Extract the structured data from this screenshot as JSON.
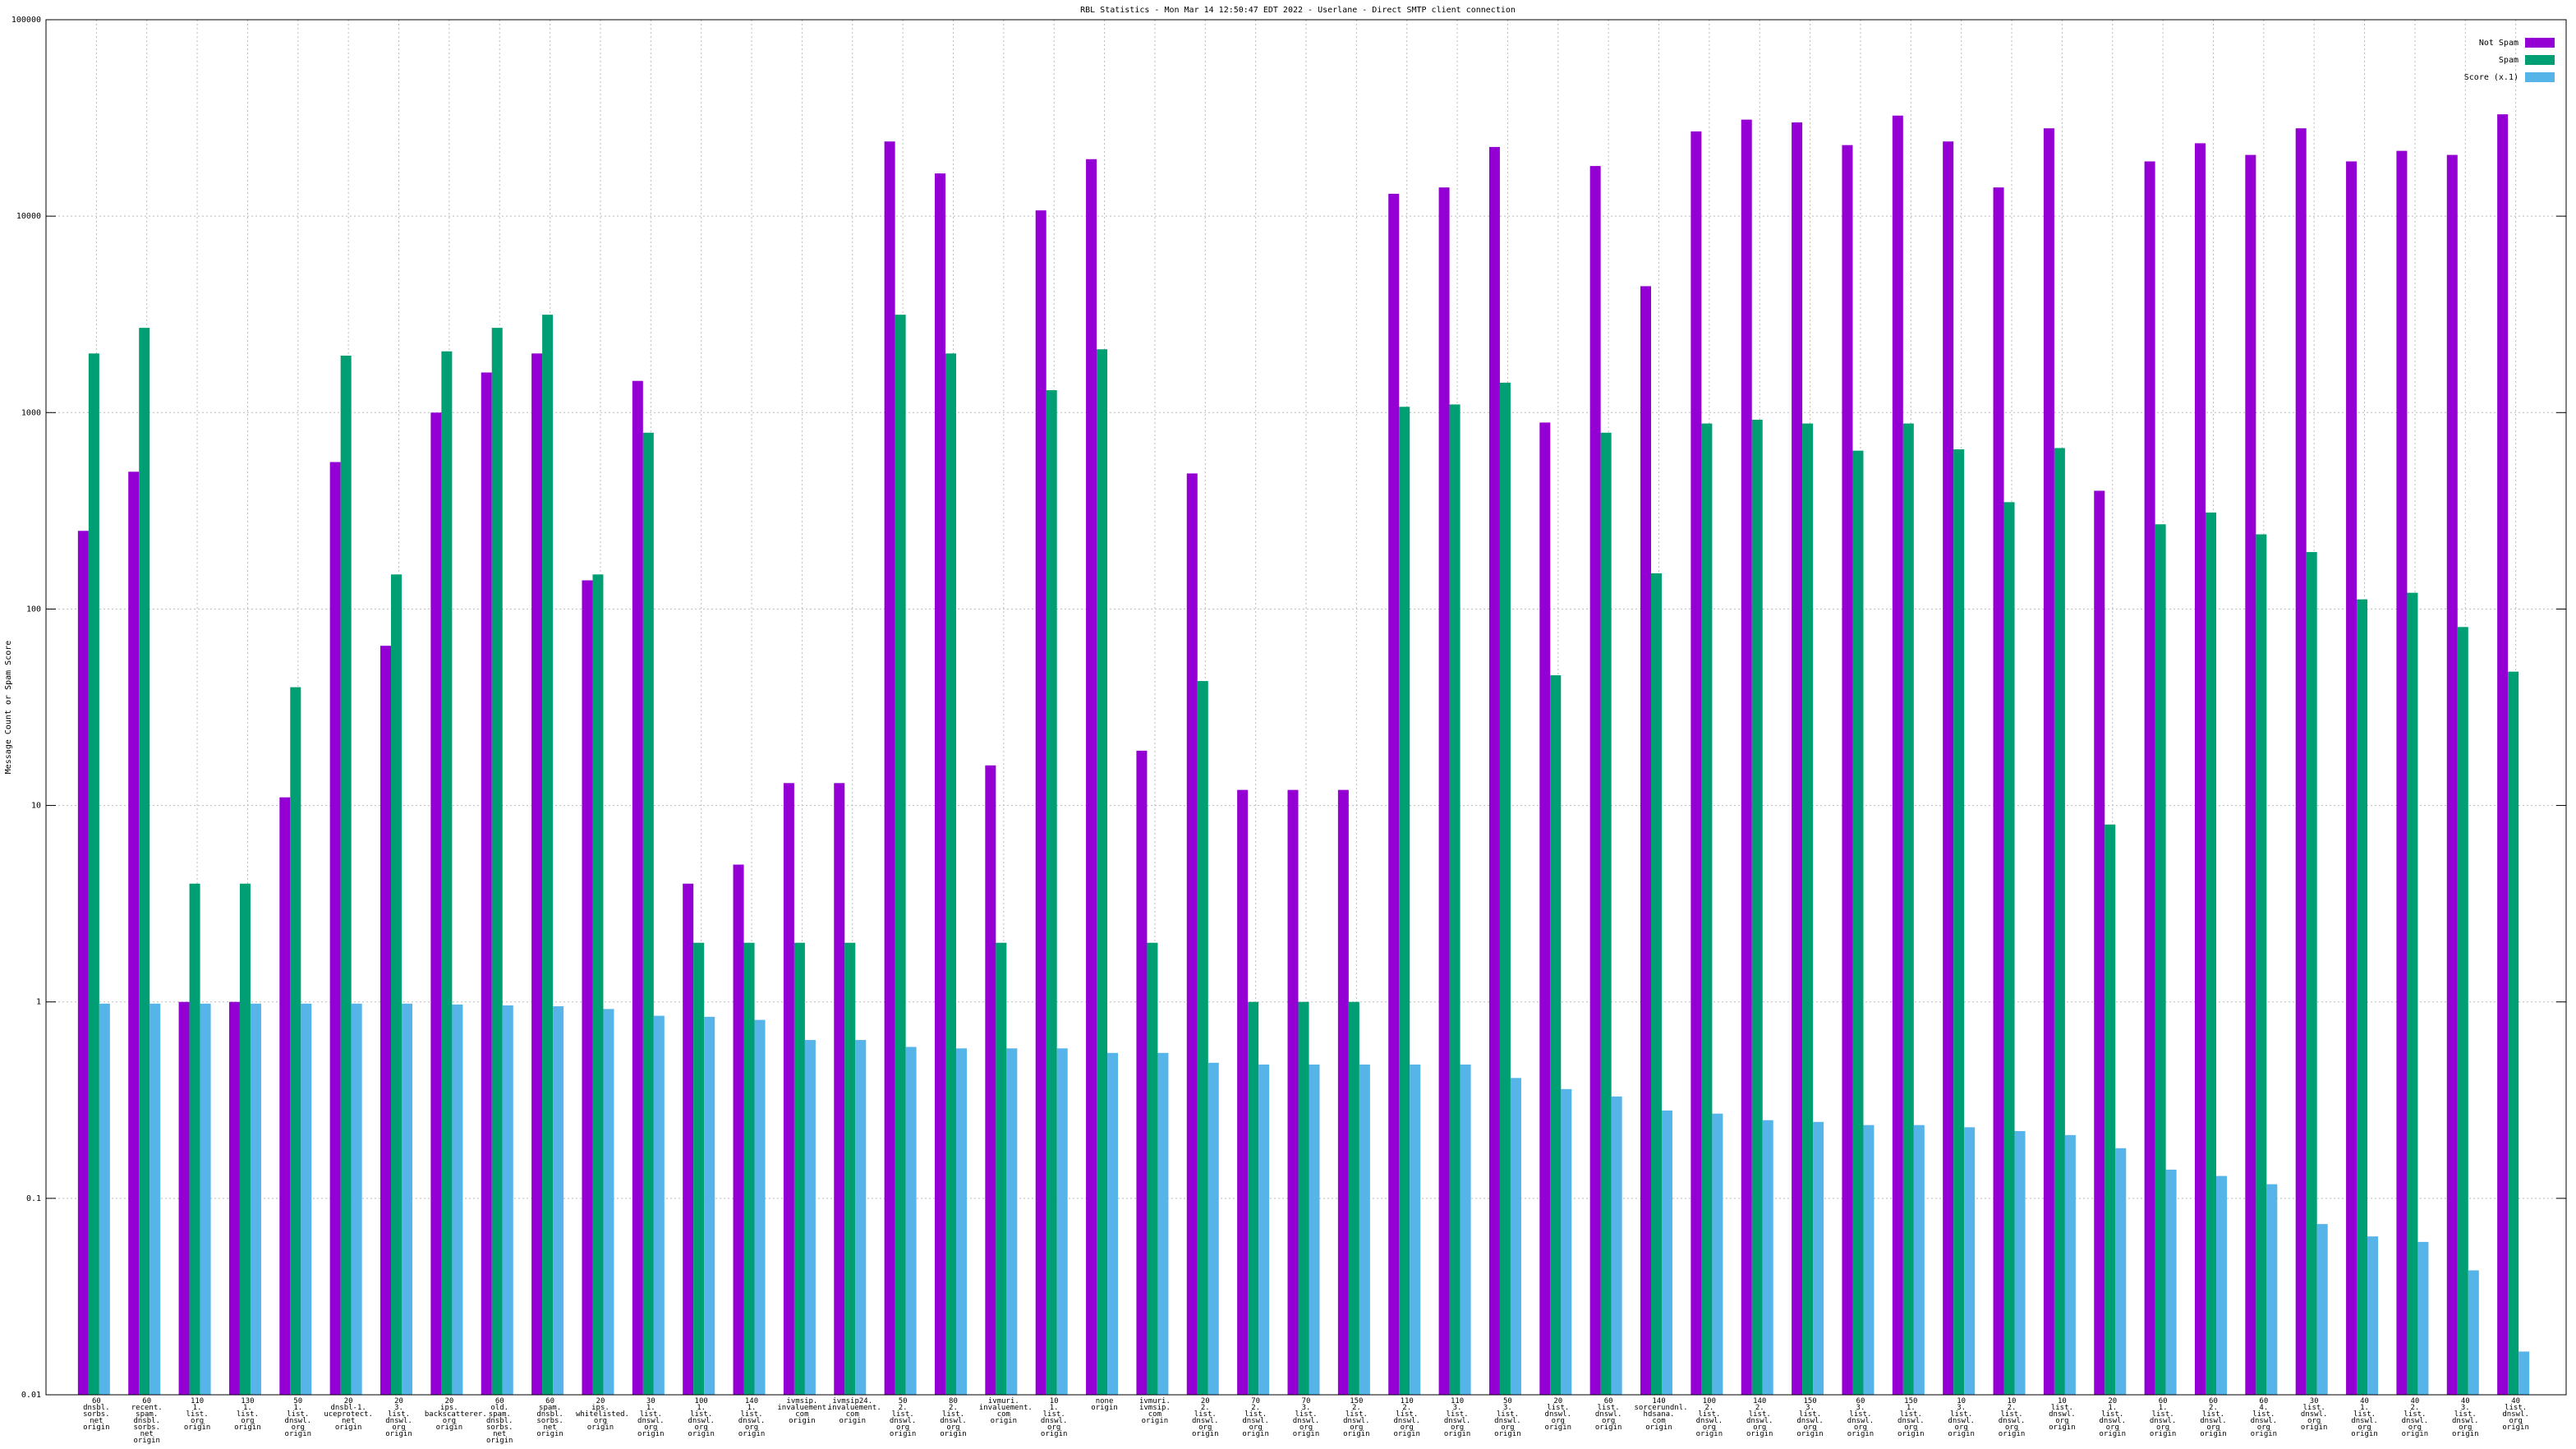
{
  "chart_data": {
    "type": "bar",
    "title": "RBL Statistics - Mon Mar 14 12:50:47 EDT 2022 - Userlane - Direct SMTP client connection",
    "y_label": "Message Count or Spam Score",
    "log_scale": true,
    "grid": true,
    "legend": "top-right",
    "ylim": [
      0.01,
      100000
    ],
    "yticks": [
      0.01,
      0.1,
      1,
      10,
      100,
      1000,
      10000,
      100000
    ],
    "categories": [
      "60\ndnsbl.\nsorbs.\nnet\norigin",
      "60\nrecent.\nspam.\ndnsbl.\nsorbs.\nnet\norigin",
      "110\n1.\nlist.\norg\norigin",
      "130\n1.\nlist.\norg\norigin",
      "50\n1.\nlist.\ndnswl.\norg\norigin",
      "20\ndnsbl-1.\nuceprotect.\nnet\norigin",
      "20\n3.\nlist.\ndnswl.\norg\norigin",
      "20\nips.\nbackscatterer.\norg\norigin",
      "60\nold.\nspam.\ndnsbl.\nsorbs.\nnet\norigin",
      "60\nspam.\ndnsbl.\nsorbs.\nnet\norigin",
      "20\nips.\nwhitelisted.\norg\norigin",
      "30\n1.\nlist.\ndnswl.\norg\norigin",
      "100\n1.\nlist.\ndnswl.\norg\norigin",
      "140\n1.\nlist.\ndnswl.\norg\norigin",
      "ivmsip.\ninvaluement.\ncom\norigin",
      "ivmsip24.\ninvaluement.\ncom\norigin",
      "50\n2.\nlist.\ndnswl.\norg\norigin",
      "80\n2.\nlist.\ndnswl.\norg\norigin",
      "ivmuri.\ninvaluement.\ncom\norigin",
      "10\n1.\nlist.\ndnswl.\norg\norigin",
      "none\norigin",
      "ivmuri.\nivmsip.\ncom\norigin",
      "20\n2.\nlist.\ndnswl.\norg\norigin",
      "70\n2.\nlist.\ndnswl.\norg\norigin",
      "70\n3.\nlist.\ndnswl.\norg\norigin",
      "150\n2.\nlist.\ndnswl.\norg\norigin",
      "110\n2.\nlist.\ndnswl.\norg\norigin",
      "110\n3.\nlist.\ndnswl.\norg\norigin",
      "50\n3.\nlist.\ndnswl.\norg\norigin",
      "20\nlist.\ndnswl.\norg\norigin",
      "60\nlist.\ndnswl.\norg\norigin",
      "140\nsorcerundnl.\nhdsana.\ncom\norigin",
      "100\n2.\nlist.\ndnswl.\norg\norigin",
      "140\n2.\nlist.\ndnswl.\norg\norigin",
      "150\n3.\nlist.\ndnswl.\norg\norigin",
      "60\n3.\nlist.\ndnswl.\norg\norigin",
      "150\n1.\nlist.\ndnswl.\norg\norigin",
      "10\n3.\nlist.\ndnswl.\norg\norigin",
      "10\n2.\nlist.\ndnswl.\norg\norigin",
      "10\nlist.\ndnswl.\norg\norigin",
      "20\n1.\nlist.\ndnswl.\norg\norigin",
      "60\n1.\nlist.\ndnswl.\norg\norigin",
      "60\n2.\nlist.\ndnswl.\norg\norigin",
      "60\n4.\nlist.\ndnswl.\norg\norigin",
      "30\nlist.\ndnswl.\norg\norigin",
      "40\n1.\nlist.\ndnswl.\norg\norigin",
      "40\n2.\nlist.\ndnswl.\norg\norigin",
      "40\n3.\nlist.\ndnswl.\norg\norigin",
      "40\nlist.\ndnswl.\norg\norigin"
    ],
    "series": [
      {
        "name": "Not Spam",
        "color": "#9400d3",
        "values": [
          250,
          500,
          1,
          1,
          11,
          560,
          65,
          1000,
          1600,
          2000,
          140,
          1450,
          4,
          5,
          13,
          13,
          24000,
          16500,
          16,
          10700,
          19500,
          19,
          490,
          12,
          12,
          12,
          13000,
          14000,
          22500,
          890,
          18000,
          4400,
          27000,
          31000,
          30000,
          23000,
          32500,
          24000,
          14000,
          28000,
          400,
          19000,
          23500,
          20500,
          28000,
          19000,
          21500,
          20500,
          33000
        ]
      },
      {
        "name": "Spam",
        "color": "#009e73",
        "values": [
          2000,
          2700,
          4,
          4,
          40,
          1950,
          150,
          2050,
          2700,
          3150,
          150,
          790,
          2,
          2,
          2,
          2,
          3150,
          2000,
          2,
          1300,
          2100,
          2,
          43,
          1,
          1,
          1,
          1070,
          1100,
          1420,
          46,
          790,
          152,
          880,
          920,
          880,
          640,
          880,
          650,
          350,
          660,
          8,
          270,
          310,
          240,
          195,
          112,
          121,
          81,
          48
        ]
      },
      {
        "name": "Score (x.1)",
        "color": "#56b4e9",
        "values": [
          0.98,
          0.98,
          0.98,
          0.98,
          0.98,
          0.98,
          0.98,
          0.97,
          0.96,
          0.95,
          0.92,
          0.85,
          0.84,
          0.81,
          0.64,
          0.64,
          0.59,
          0.58,
          0.58,
          0.58,
          0.55,
          0.55,
          0.49,
          0.48,
          0.48,
          0.48,
          0.48,
          0.48,
          0.41,
          0.36,
          0.33,
          0.28,
          0.27,
          0.25,
          0.245,
          0.236,
          0.236,
          0.23,
          0.22,
          0.21,
          0.18,
          0.14,
          0.13,
          0.118,
          0.074,
          0.064,
          0.06,
          0.043,
          0.0166
        ]
      }
    ]
  }
}
